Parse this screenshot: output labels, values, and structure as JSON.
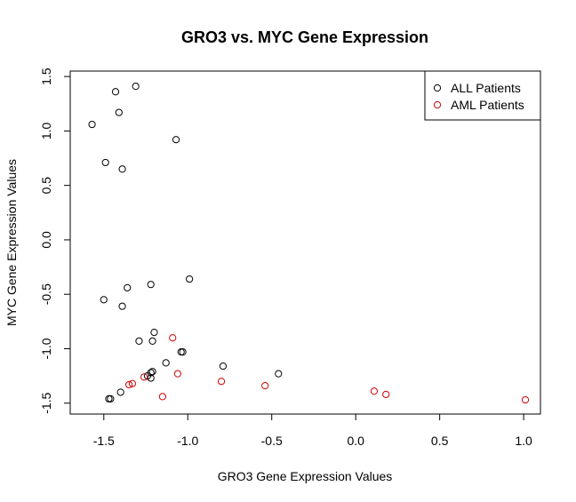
{
  "chart_data": {
    "type": "scatter",
    "title": "GRO3 vs. MYC Gene Expression",
    "xlabel": "GRO3 Gene Expression Values",
    "ylabel": "MYC Gene Expression Values",
    "xlim": [
      -1.7,
      1.1
    ],
    "ylim": [
      -1.6,
      1.55
    ],
    "xticks": [
      -1.5,
      -1.0,
      -0.5,
      0.0,
      0.5,
      1.0
    ],
    "xtick_labels": [
      "-1.5",
      "-1.0",
      "-0.5",
      "0.0",
      "0.5",
      "1.0"
    ],
    "yticks": [
      -1.5,
      -1.0,
      -0.5,
      0.0,
      0.5,
      1.0,
      1.5
    ],
    "ytick_labels": [
      "-1.5",
      "-1.0",
      "-0.5",
      "0.0",
      "0.5",
      "1.0",
      "1.5"
    ],
    "grid": false,
    "legend_position": "top-right",
    "series": [
      {
        "name": "ALL Patients",
        "color": "#000000",
        "points": [
          [
            -1.57,
            1.06
          ],
          [
            -1.43,
            1.36
          ],
          [
            -1.31,
            1.41
          ],
          [
            -1.41,
            1.17
          ],
          [
            -1.07,
            0.92
          ],
          [
            -1.49,
            0.71
          ],
          [
            -1.39,
            0.65
          ],
          [
            -1.22,
            -0.41
          ],
          [
            -0.99,
            -0.36
          ],
          [
            -1.36,
            -0.44
          ],
          [
            -1.5,
            -0.55
          ],
          [
            -1.39,
            -0.61
          ],
          [
            -1.2,
            -0.85
          ],
          [
            -1.29,
            -0.93
          ],
          [
            -1.21,
            -0.93
          ],
          [
            -1.04,
            -1.03
          ],
          [
            -1.03,
            -1.03
          ],
          [
            -1.13,
            -1.13
          ],
          [
            -0.79,
            -1.16
          ],
          [
            -1.21,
            -1.21
          ],
          [
            -1.22,
            -1.22
          ],
          [
            -1.24,
            -1.25
          ],
          [
            -1.22,
            -1.27
          ],
          [
            -0.46,
            -1.23
          ],
          [
            -1.4,
            -1.4
          ],
          [
            -1.46,
            -1.46
          ],
          [
            -1.47,
            -1.46
          ]
        ]
      },
      {
        "name": "AML Patients",
        "color": "#cc0000",
        "points": [
          [
            -1.09,
            -0.9
          ],
          [
            -1.06,
            -1.23
          ],
          [
            -1.26,
            -1.26
          ],
          [
            -0.8,
            -1.3
          ],
          [
            -1.33,
            -1.32
          ],
          [
            -1.35,
            -1.33
          ],
          [
            -0.54,
            -1.34
          ],
          [
            0.11,
            -1.39
          ],
          [
            0.18,
            -1.42
          ],
          [
            -1.15,
            -1.44
          ],
          [
            1.01,
            -1.47
          ]
        ]
      }
    ]
  }
}
